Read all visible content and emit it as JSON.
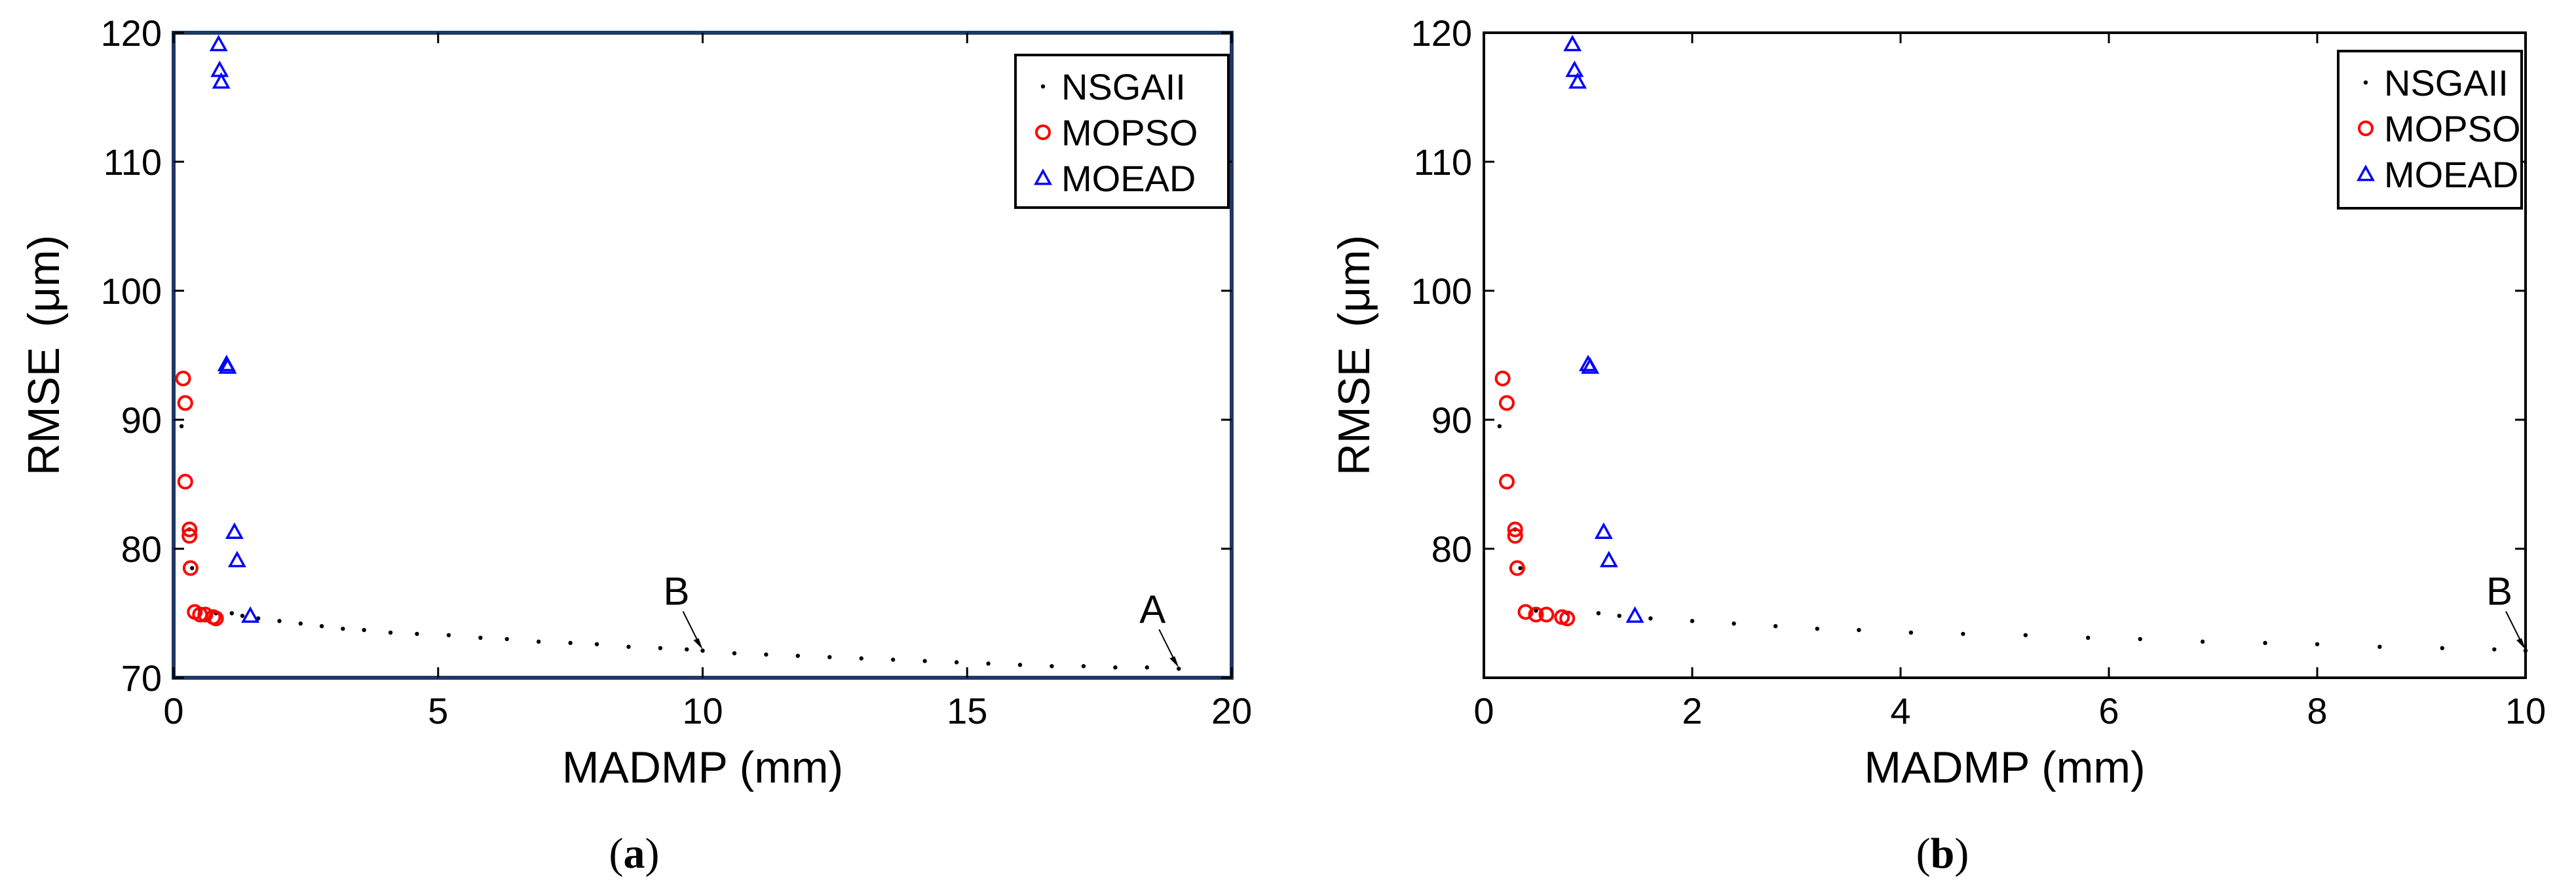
{
  "chart_data": [
    {
      "panel": "(a)",
      "caption_prefix": "(",
      "caption_letter": "a",
      "caption_suffix": ")",
      "type": "scatter",
      "xlabel": "MADMP (mm)",
      "ylabel": "RMSE",
      "ylabel_unit": "(μm)",
      "xlim": [
        0,
        20
      ],
      "ylim": [
        70,
        120
      ],
      "xticks": [
        0,
        5,
        10,
        15,
        20
      ],
      "yticks": [
        70,
        80,
        90,
        100,
        110,
        120
      ],
      "legend": [
        "NSGAII",
        "MOPSO",
        "MOEAD"
      ],
      "legend_position": "top-right",
      "series": [
        {
          "name": "NSGAII",
          "marker": "dot",
          "color": "#000000",
          "points": [
            [
              0.15,
              89.5
            ],
            [
              0.3,
              81.5
            ],
            [
              0.35,
              78.5
            ],
            [
              0.5,
              75.2
            ],
            [
              0.8,
              75.0
            ],
            [
              1.1,
              75.0
            ],
            [
              1.3,
              74.8
            ],
            [
              1.6,
              74.6
            ],
            [
              2.0,
              74.4
            ],
            [
              2.4,
              74.2
            ],
            [
              2.8,
              74.0
            ],
            [
              3.2,
              73.8
            ],
            [
              3.6,
              73.7
            ],
            [
              4.1,
              73.5
            ],
            [
              4.6,
              73.4
            ],
            [
              5.2,
              73.3
            ],
            [
              5.8,
              73.1
            ],
            [
              6.3,
              73.0
            ],
            [
              6.9,
              72.8
            ],
            [
              7.5,
              72.7
            ],
            [
              8.0,
              72.6
            ],
            [
              8.6,
              72.4
            ],
            [
              9.2,
              72.3
            ],
            [
              9.7,
              72.2
            ],
            [
              10.0,
              72.1
            ],
            [
              10.6,
              71.9
            ],
            [
              11.2,
              71.8
            ],
            [
              11.8,
              71.7
            ],
            [
              12.4,
              71.6
            ],
            [
              13.0,
              71.5
            ],
            [
              13.6,
              71.4
            ],
            [
              14.2,
              71.3
            ],
            [
              14.8,
              71.2
            ],
            [
              15.4,
              71.1
            ],
            [
              16.0,
              71.0
            ],
            [
              16.6,
              70.9
            ],
            [
              17.2,
              70.9
            ],
            [
              17.8,
              70.8
            ],
            [
              18.4,
              70.8
            ],
            [
              19.0,
              70.7
            ]
          ]
        },
        {
          "name": "MOPSO",
          "marker": "circle",
          "color": "#ff0000",
          "points": [
            [
              0.18,
              93.2
            ],
            [
              0.22,
              91.3
            ],
            [
              0.22,
              85.2
            ],
            [
              0.3,
              81.5
            ],
            [
              0.3,
              81.0
            ],
            [
              0.32,
              78.5
            ],
            [
              0.4,
              75.1
            ],
            [
              0.5,
              74.9
            ],
            [
              0.6,
              74.9
            ],
            [
              0.75,
              74.7
            ],
            [
              0.8,
              74.6
            ]
          ]
        },
        {
          "name": "MOEAD",
          "marker": "triangle",
          "color": "#0000ff",
          "points": [
            [
              0.85,
              119.1
            ],
            [
              0.87,
              117.1
            ],
            [
              0.9,
              116.2
            ],
            [
              1.0,
              94.3
            ],
            [
              1.02,
              94.1
            ],
            [
              1.15,
              81.3
            ],
            [
              1.2,
              79.1
            ],
            [
              1.45,
              74.8
            ]
          ]
        }
      ],
      "annotations": [
        {
          "label": "B",
          "x": 10,
          "y": 72.1
        },
        {
          "label": "A",
          "x": 19,
          "y": 70.7
        }
      ]
    },
    {
      "panel": "(b)",
      "caption_prefix": "(",
      "caption_letter": "b",
      "caption_suffix": ")",
      "type": "scatter",
      "xlabel": "MADMP (mm)",
      "ylabel": "RMSE",
      "ylabel_unit": "(μm)",
      "xlim": [
        0,
        10
      ],
      "ylim": [
        70,
        120
      ],
      "xticks": [
        0,
        2,
        4,
        6,
        8,
        10
      ],
      "yticks": [
        80,
        90,
        100,
        110,
        120
      ],
      "legend": [
        "NSGAII",
        "MOPSO",
        "MOEAD"
      ],
      "legend_position": "top-right",
      "series": [
        {
          "name": "NSGAII",
          "marker": "dot",
          "color": "#000000",
          "points": [
            [
              0.15,
              89.5
            ],
            [
              0.3,
              81.5
            ],
            [
              0.35,
              78.5
            ],
            [
              0.5,
              75.2
            ],
            [
              0.8,
              75.0
            ],
            [
              1.1,
              75.0
            ],
            [
              1.3,
              74.8
            ],
            [
              1.6,
              74.6
            ],
            [
              2.0,
              74.4
            ],
            [
              2.4,
              74.2
            ],
            [
              2.8,
              74.0
            ],
            [
              3.2,
              73.8
            ],
            [
              3.6,
              73.7
            ],
            [
              4.1,
              73.5
            ],
            [
              4.6,
              73.4
            ],
            [
              5.2,
              73.3
            ],
            [
              5.8,
              73.1
            ],
            [
              6.3,
              73.0
            ],
            [
              6.9,
              72.8
            ],
            [
              7.5,
              72.7
            ],
            [
              8.0,
              72.6
            ],
            [
              8.6,
              72.4
            ],
            [
              9.2,
              72.3
            ],
            [
              9.7,
              72.2
            ],
            [
              10.0,
              72.1
            ]
          ]
        },
        {
          "name": "MOPSO",
          "marker": "circle",
          "color": "#ff0000",
          "points": [
            [
              0.18,
              93.2
            ],
            [
              0.22,
              91.3
            ],
            [
              0.22,
              85.2
            ],
            [
              0.3,
              81.5
            ],
            [
              0.3,
              81.0
            ],
            [
              0.32,
              78.5
            ],
            [
              0.4,
              75.1
            ],
            [
              0.5,
              74.9
            ],
            [
              0.6,
              74.9
            ],
            [
              0.75,
              74.7
            ],
            [
              0.8,
              74.6
            ]
          ]
        },
        {
          "name": "MOEAD",
          "marker": "triangle",
          "color": "#0000ff",
          "points": [
            [
              0.85,
              119.1
            ],
            [
              0.87,
              117.1
            ],
            [
              0.9,
              116.2
            ],
            [
              1.0,
              94.3
            ],
            [
              1.02,
              94.1
            ],
            [
              1.15,
              81.3
            ],
            [
              1.2,
              79.1
            ],
            [
              1.45,
              74.8
            ]
          ]
        }
      ],
      "annotations": [
        {
          "label": "B",
          "x": 10,
          "y": 72.1
        }
      ]
    }
  ]
}
